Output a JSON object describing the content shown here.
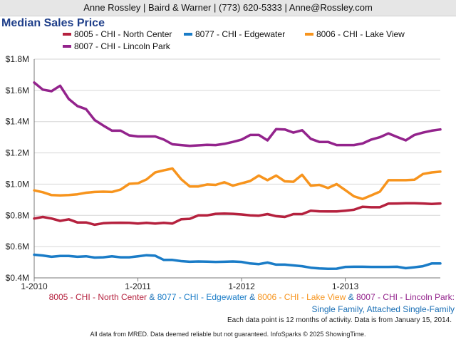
{
  "header": "Anne Rossley | Baird & Warner | (773) 620-5333 | Anne@Rossley.com",
  "caption": {
    "amp": "&",
    "suffix": "Single Family, Attached Single-Family"
  },
  "notes": {
    "activity": "Each data point is 12 months of activity. Data is from January 15, 2014.",
    "copyright": "All data from MRED. Data deemed reliable but not guaranteed. InfoSparks © 2025 ShowingTime."
  },
  "chart_data": {
    "type": "line",
    "title": "Median Sales Price",
    "xlabel": "",
    "ylabel": "",
    "ylim": [
      400000,
      1800000
    ],
    "yticks": [
      400000,
      600000,
      800000,
      1000000,
      1200000,
      1400000,
      1600000,
      1800000
    ],
    "ytick_labels": [
      "$0.4M",
      "$0.6M",
      "$0.8M",
      "$1.0M",
      "$1.2M",
      "$1.4M",
      "$1.6M",
      "$1.8M"
    ],
    "xtick_labels": [
      "1-2010",
      "1-2011",
      "1-2012",
      "1-2013"
    ],
    "xtick_positions": [
      0,
      12,
      24,
      36
    ],
    "x_range": [
      0,
      47
    ],
    "grid": true,
    "legend_position": "top",
    "series": [
      {
        "name": "8005 - CHI - North Center",
        "color": "#b5213e",
        "values": [
          780000,
          790000,
          780000,
          765000,
          775000,
          755000,
          755000,
          740000,
          750000,
          752000,
          753000,
          752000,
          748000,
          752000,
          748000,
          752000,
          748000,
          775000,
          778000,
          800000,
          800000,
          810000,
          812000,
          810000,
          806000,
          800000,
          798000,
          808000,
          795000,
          790000,
          808000,
          808000,
          830000,
          826000,
          825000,
          825000,
          830000,
          836000,
          855000,
          852000,
          852000,
          875000,
          876000,
          878000,
          878000,
          876000,
          873000,
          876000
        ]
      },
      {
        "name": "8077 - CHI - Edgewater",
        "color": "#1a7cc7",
        "values": [
          548000,
          543000,
          535000,
          540000,
          540000,
          535000,
          538000,
          530000,
          532000,
          538000,
          532000,
          532000,
          538000,
          545000,
          542000,
          515000,
          515000,
          507000,
          503000,
          505000,
          504000,
          502000,
          503000,
          505000,
          502000,
          492000,
          488000,
          498000,
          485000,
          485000,
          480000,
          475000,
          465000,
          460000,
          458000,
          459000,
          470000,
          471000,
          471000,
          470000,
          470000,
          470000,
          471000,
          462000,
          468000,
          475000,
          492000,
          492000
        ]
      },
      {
        "name": "8006 - CHI - Lake View",
        "color": "#f7941d",
        "values": [
          960000,
          948000,
          930000,
          928000,
          930000,
          935000,
          945000,
          950000,
          952000,
          950000,
          965000,
          1002000,
          1005000,
          1030000,
          1075000,
          1088000,
          1100000,
          1032000,
          985000,
          985000,
          998000,
          995000,
          1012000,
          990000,
          1005000,
          1020000,
          1055000,
          1025000,
          1055000,
          1018000,
          1015000,
          1060000,
          990000,
          995000,
          975000,
          1000000,
          962000,
          922000,
          905000,
          928000,
          952000,
          1025000,
          1025000,
          1025000,
          1028000,
          1065000,
          1075000,
          1080000
        ]
      },
      {
        "name": "8007 - CHI - Lincoln Park",
        "color": "#93238c",
        "values": [
          1650000,
          1605000,
          1595000,
          1630000,
          1545000,
          1500000,
          1480000,
          1410000,
          1375000,
          1342000,
          1342000,
          1312000,
          1305000,
          1305000,
          1305000,
          1285000,
          1255000,
          1250000,
          1245000,
          1248000,
          1252000,
          1250000,
          1258000,
          1270000,
          1285000,
          1315000,
          1315000,
          1280000,
          1352000,
          1350000,
          1330000,
          1345000,
          1290000,
          1270000,
          1270000,
          1250000,
          1250000,
          1250000,
          1260000,
          1285000,
          1300000,
          1325000,
          1302000,
          1280000,
          1315000,
          1330000,
          1342000,
          1350000
        ]
      }
    ]
  }
}
